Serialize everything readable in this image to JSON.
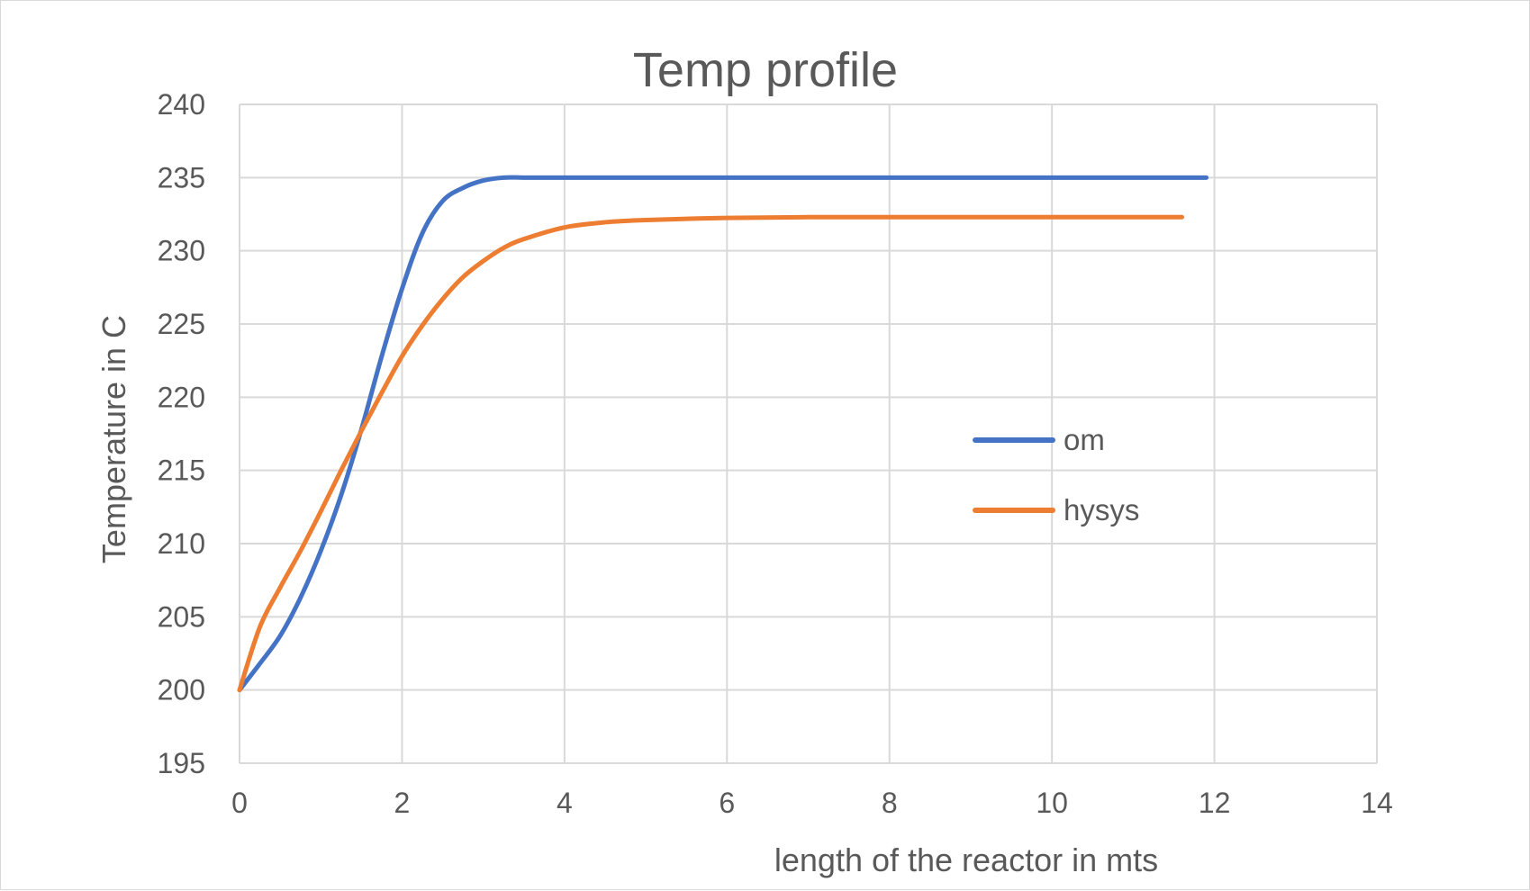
{
  "chart_data": {
    "type": "line",
    "title": "Temp profile",
    "xlabel": "length of the reactor in mts",
    "ylabel": "Temperature in C",
    "xlim": [
      0,
      14
    ],
    "ylim": [
      195,
      240
    ],
    "xticks": [
      0,
      2,
      4,
      6,
      8,
      10,
      12,
      14
    ],
    "yticks": [
      195,
      200,
      205,
      210,
      215,
      220,
      225,
      230,
      235,
      240
    ],
    "grid": true,
    "legend_position": "right-center",
    "series": [
      {
        "name": "om",
        "color": "#4472c4",
        "x": [
          0,
          0.25,
          0.5,
          0.75,
          1.0,
          1.25,
          1.5,
          1.75,
          2.0,
          2.25,
          2.5,
          2.75,
          3.0,
          3.25,
          3.5,
          4,
          5,
          6,
          8,
          10,
          11.9
        ],
        "y": [
          200,
          201.8,
          203.7,
          206.3,
          209.5,
          213.3,
          217.8,
          222.8,
          227.4,
          231.2,
          233.4,
          234.3,
          234.8,
          235,
          235,
          235,
          235,
          235,
          235,
          235,
          235
        ]
      },
      {
        "name": "hysys",
        "color": "#ed7d31",
        "x": [
          0,
          0.25,
          0.5,
          0.75,
          1.0,
          1.25,
          1.5,
          1.75,
          2.0,
          2.25,
          2.5,
          2.75,
          3.0,
          3.25,
          3.5,
          4,
          4.5,
          5,
          6,
          7,
          8,
          10,
          11.6
        ],
        "y": [
          200,
          204.3,
          207,
          209.5,
          212.2,
          215,
          217.7,
          220.3,
          222.8,
          224.9,
          226.7,
          228.2,
          229.3,
          230.2,
          230.8,
          231.6,
          231.95,
          232.1,
          232.25,
          232.3,
          232.3,
          232.3,
          232.3
        ]
      }
    ]
  }
}
